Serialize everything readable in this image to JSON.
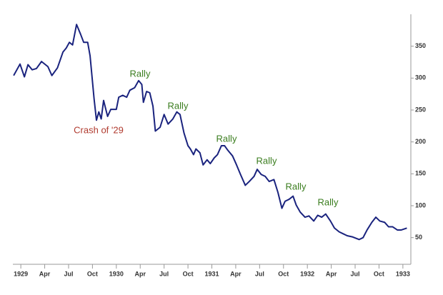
{
  "chart_data": {
    "type": "line",
    "series": [
      {
        "color": "#1a237e",
        "x": [
          -0.9,
          -0.1,
          0.45,
          0.9,
          1.43,
          1.96,
          2.6,
          3.4,
          3.9,
          4.6,
          5.3,
          5.7,
          6.1,
          6.5,
          7.0,
          7.5,
          7.9,
          8.4,
          8.7,
          9.2,
          9.5,
          9.8,
          10.1,
          10.4,
          10.9,
          11.3,
          12.0,
          12.3,
          12.8,
          13.3,
          13.7,
          14.3,
          14.8,
          15.2,
          15.4,
          15.8,
          16.2,
          16.6,
          16.9,
          17.5,
          18.0,
          18.5,
          19.1,
          19.6,
          20.0,
          20.5,
          21.0,
          21.3,
          21.7,
          22.0,
          22.5,
          22.9,
          23.4,
          23.8,
          24.3,
          24.7,
          25.2,
          25.6,
          26.0,
          26.6,
          27.1,
          27.6,
          28.2,
          28.7,
          29.3,
          29.7,
          30.2,
          30.7,
          31.2,
          31.8,
          32.3,
          32.8,
          33.2,
          33.7,
          34.2,
          34.6,
          35.1,
          35.7,
          36.2,
          36.8,
          37.3,
          37.8,
          38.3,
          38.9,
          39.4,
          40.0,
          40.5,
          41.0,
          41.7,
          42.5,
          43.0,
          43.5,
          44.1,
          44.6,
          45.1,
          45.7,
          46.2,
          46.7,
          47.3,
          47.8,
          48.5
        ],
        "values": [
          304,
          322,
          302,
          321,
          313,
          315,
          326,
          318,
          304,
          316,
          341,
          347,
          356,
          352,
          384,
          369,
          356,
          356,
          335,
          268,
          234,
          247,
          236,
          265,
          240,
          251,
          251,
          270,
          273,
          270,
          281,
          285,
          296,
          290,
          262,
          279,
          277,
          256,
          217,
          223,
          243,
          228,
          236,
          247,
          243,
          214,
          194,
          189,
          180,
          189,
          183,
          164,
          172,
          166,
          175,
          180,
          194,
          194,
          187,
          178,
          164,
          149,
          132,
          138,
          146,
          157,
          149,
          146,
          138,
          141,
          121,
          96,
          107,
          110,
          115,
          101,
          90,
          82,
          84,
          76,
          85,
          82,
          87,
          76,
          65,
          59,
          56,
          53,
          51,
          47,
          50,
          62,
          74,
          82,
          76,
          74,
          67,
          67,
          62,
          62,
          65
        ]
      }
    ],
    "xlim": [
      -1,
      49
    ],
    "xticks": [
      {
        "value": 0,
        "label": "1929"
      },
      {
        "value": 3,
        "label": "Apr"
      },
      {
        "value": 6,
        "label": "Jul"
      },
      {
        "value": 9,
        "label": "Oct"
      },
      {
        "value": 12,
        "label": "1930"
      },
      {
        "value": 15,
        "label": "Apr"
      },
      {
        "value": 18,
        "label": "Jul"
      },
      {
        "value": 21,
        "label": "Oct"
      },
      {
        "value": 24,
        "label": "1931"
      },
      {
        "value": 27,
        "label": "Apr"
      },
      {
        "value": 30,
        "label": "Jul"
      },
      {
        "value": 33,
        "label": "Oct"
      },
      {
        "value": 36,
        "label": "1932"
      },
      {
        "value": 39,
        "label": "Apr"
      },
      {
        "value": 42,
        "label": "Jul"
      },
      {
        "value": 45,
        "label": "Oct"
      },
      {
        "value": 48,
        "label": "1933"
      }
    ],
    "ylim": [
      25,
      400
    ],
    "yticks": [
      50,
      100,
      150,
      200,
      250,
      300,
      350
    ],
    "annotations": [
      {
        "text": "Crash of '29",
        "color": "#b03a2e"
      },
      {
        "text": "Rally",
        "color": "#3a7d1e"
      },
      {
        "text": "Rally",
        "color": "#3a7d1e"
      },
      {
        "text": "Rally",
        "color": "#3a7d1e"
      },
      {
        "text": "Rally",
        "color": "#3a7d1e"
      },
      {
        "text": "Rally",
        "color": "#3a7d1e"
      },
      {
        "text": "Rally",
        "color": "#3a7d1e"
      }
    ]
  }
}
